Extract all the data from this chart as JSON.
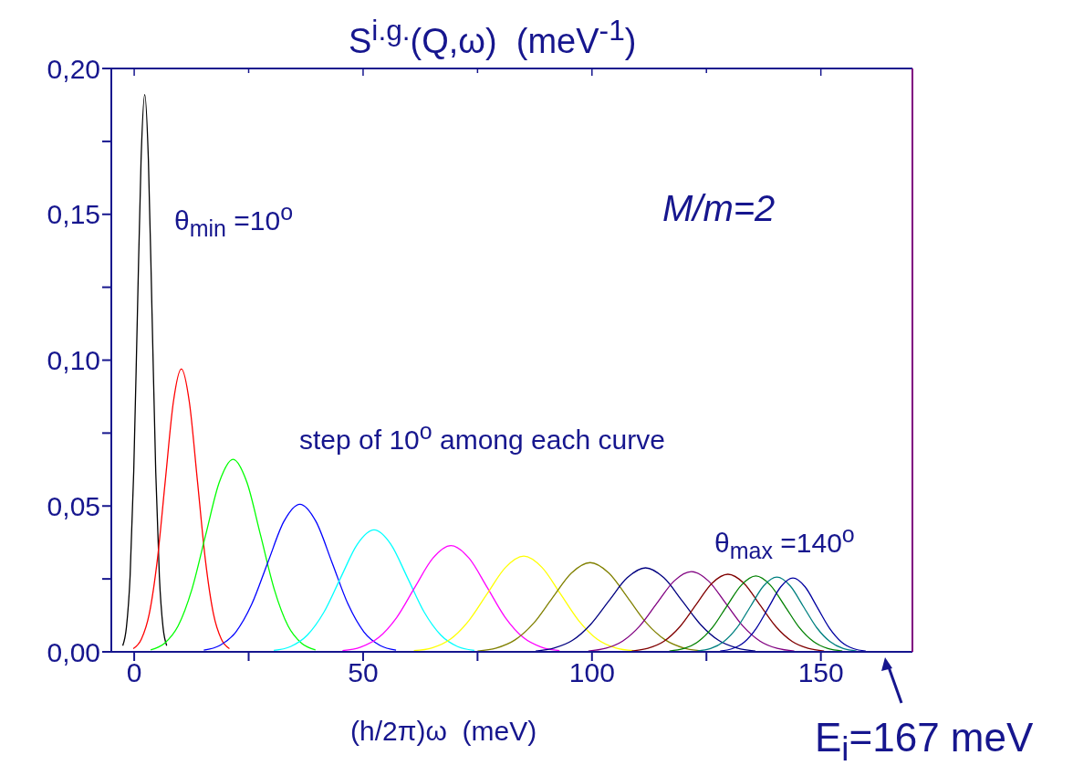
{
  "chart_data": {
    "type": "line",
    "title": "S$^{i.g.}$(Q,ω)  (meV$^{-1}$)",
    "xlabel": "(h/2π)ω  (meV)",
    "xlim": [
      -5,
      170
    ],
    "xticks": [
      0,
      {
        "value": 25,
        "label": null
      },
      50,
      {
        "value": 75,
        "label": null
      },
      100,
      {
        "value": 125,
        "label": null
      },
      150
    ],
    "ylim": [
      0,
      0.2
    ],
    "yticks": [
      {
        "value": 0,
        "label": "0,00"
      },
      {
        "value": 0.025,
        "label": null
      },
      {
        "value": 0.05,
        "label": "0,05"
      },
      {
        "value": 0.075,
        "label": null
      },
      {
        "value": 0.1,
        "label": "0,10"
      },
      {
        "value": 0.125,
        "label": null
      },
      {
        "value": 0.15,
        "label": "0,15"
      },
      {
        "value": 0.175,
        "label": null
      },
      {
        "value": 0.2,
        "label": "0,20"
      }
    ],
    "grid": false,
    "legend": false,
    "annotations": [
      "θ$_{min}$ =10$^{o}$",
      "M/m=2",
      "step of 10$^{o}$ among each curve",
      "θ$_{max}$ =140$^{o}$",
      "E$_{i}$=167 meV"
    ],
    "series": [
      {
        "color": "#000000",
        "x": [
          -2.5,
          -1.7,
          -0.9,
          -0.1,
          0.7,
          1.5,
          2.3,
          3.1,
          3.9,
          4.7,
          5.5,
          6.3,
          7.1
        ],
        "values": [
          0.0021,
          0.0084,
          0.0258,
          0.062,
          0.1158,
          0.1686,
          0.191,
          0.1686,
          0.1158,
          0.062,
          0.0258,
          0.0084,
          0.0021
        ]
      },
      {
        "color": "#ff0000",
        "x": [
          -0.2,
          1.55,
          3.3,
          5.05,
          6.8,
          8.55,
          10.3,
          12.05,
          13.8,
          15.55,
          17.3,
          19.05,
          20.8
        ],
        "values": [
          0.0011,
          0.0043,
          0.0131,
          0.0315,
          0.0588,
          0.0856,
          0.097,
          0.0856,
          0.0588,
          0.0315,
          0.0131,
          0.0043,
          0.0011
        ]
      },
      {
        "color": "#00ff00",
        "x": [
          3.6,
          6.6,
          9.6,
          12.6,
          15.6,
          18.6,
          21.6,
          24.6,
          27.6,
          30.6,
          33.6,
          36.6,
          39.6
        ],
        "values": [
          0.0007,
          0.0029,
          0.0089,
          0.0214,
          0.04,
          0.0582,
          0.066,
          0.0582,
          0.04,
          0.0214,
          0.0089,
          0.0029,
          0.0007
        ]
      },
      {
        "color": "#0000ff",
        "x": [
          15.2,
          18.7,
          22.2,
          25.7,
          29.2,
          32.7,
          36.2,
          39.7,
          43.2,
          46.7,
          50.2,
          53.7,
          57.2
        ],
        "values": [
          0.0006,
          0.0022,
          0.0068,
          0.0164,
          0.0307,
          0.0447,
          0.0506,
          0.0447,
          0.0307,
          0.0164,
          0.0068,
          0.0022,
          0.0006
        ]
      },
      {
        "color": "#00ffff",
        "x": [
          30.5,
          34.15,
          37.8,
          41.45,
          45.1,
          48.75,
          52.4,
          56.05,
          59.7,
          63.35,
          67,
          70.65,
          74.3
        ],
        "values": [
          0.0005,
          0.0018,
          0.0057,
          0.0136,
          0.0254,
          0.0369,
          0.0418,
          0.0369,
          0.0254,
          0.0136,
          0.0057,
          0.0018,
          0.0005
        ]
      },
      {
        "color": "#ff00ff",
        "x": [
          45.5,
          49.45,
          53.4,
          57.35,
          61.3,
          65.25,
          69.2,
          73.15,
          77.1,
          81.05,
          85,
          88.95,
          92.9
        ],
        "values": [
          0.0004,
          0.0016,
          0.0049,
          0.0118,
          0.0221,
          0.0321,
          0.0364,
          0.0321,
          0.0221,
          0.0118,
          0.0049,
          0.0016,
          0.0004
        ]
      },
      {
        "color": "#ffff00",
        "x": [
          61.1,
          65.1,
          69.1,
          73.1,
          77.1,
          81.1,
          85.1,
          89.1,
          93.1,
          97.1,
          101.1,
          105.1,
          109.1
        ],
        "values": [
          0.0004,
          0.0014,
          0.0044,
          0.0107,
          0.0199,
          0.0289,
          0.0328,
          0.0289,
          0.0199,
          0.0107,
          0.0044,
          0.0014,
          0.0004
        ]
      },
      {
        "color": "#808000",
        "x": [
          75,
          79.1,
          83.2,
          87.3,
          91.4,
          95.5,
          99.6,
          103.7,
          107.8,
          111.9,
          116,
          120.1,
          124.2
        ],
        "values": [
          0.0003,
          0.0013,
          0.0041,
          0.0099,
          0.0186,
          0.027,
          0.0306,
          0.027,
          0.0186,
          0.0099,
          0.0041,
          0.0013,
          0.0003
        ]
      },
      {
        "color": "#000080",
        "x": [
          87.7,
          91.7,
          95.7,
          99.7,
          103.7,
          107.7,
          111.7,
          115.7,
          119.7,
          123.7,
          127.7,
          131.7,
          135.7
        ],
        "values": [
          0.0003,
          0.0013,
          0.0039,
          0.0094,
          0.0175,
          0.0254,
          0.0288,
          0.0254,
          0.0175,
          0.0094,
          0.0039,
          0.0013,
          0.0003
        ]
      },
      {
        "color": "#800080",
        "x": [
          99.2,
          102.95,
          106.7,
          110.45,
          114.2,
          117.95,
          121.7,
          125.45,
          129.2,
          132.95,
          136.7,
          140.45,
          144.2
        ],
        "values": [
          0.0003,
          0.0012,
          0.0037,
          0.0089,
          0.0167,
          0.0243,
          0.0275,
          0.0243,
          0.0167,
          0.0089,
          0.0037,
          0.0012,
          0.0003
        ]
      },
      {
        "color": "#800000",
        "x": [
          108.7,
          112.2,
          115.7,
          119.2,
          122.7,
          126.2,
          129.7,
          133.2,
          136.7,
          140.2,
          143.7,
          147.2,
          150.7
        ],
        "values": [
          0.0003,
          0.0012,
          0.0036,
          0.0086,
          0.0161,
          0.0235,
          0.0266,
          0.0235,
          0.0161,
          0.0086,
          0.0036,
          0.0012,
          0.0003
        ]
      },
      {
        "color": "#008000",
        "x": [
          116.9,
          120.05,
          123.2,
          126.35,
          129.5,
          132.65,
          135.8,
          138.95,
          142.1,
          145.25,
          148.4,
          151.55,
          154.7
        ],
        "values": [
          0.0003,
          0.0011,
          0.0035,
          0.0084,
          0.0158,
          0.0229,
          0.026,
          0.0229,
          0.0158,
          0.0084,
          0.0035,
          0.0011,
          0.0003
        ]
      },
      {
        "color": "#008080",
        "x": [
          123,
          125.9,
          128.8,
          131.7,
          134.6,
          137.5,
          140.4,
          143.3,
          146.2,
          149.1,
          152,
          154.9,
          157.8
        ],
        "values": [
          0.0003,
          0.0011,
          0.0035,
          0.0083,
          0.0155,
          0.0226,
          0.0256,
          0.0226,
          0.0155,
          0.0083,
          0.0035,
          0.0011,
          0.0003
        ]
      },
      {
        "color": "#0000a0",
        "x": [
          128,
          130.65,
          133.3,
          135.95,
          138.6,
          141.25,
          143.9,
          146.55,
          149.2,
          151.85,
          154.5,
          157.15,
          159.8
        ],
        "values": [
          0.0003,
          0.0011,
          0.0034,
          0.0082,
          0.0153,
          0.0223,
          0.0253,
          0.0223,
          0.0153,
          0.0082,
          0.0034,
          0.0011,
          0.0003
        ]
      }
    ]
  }
}
